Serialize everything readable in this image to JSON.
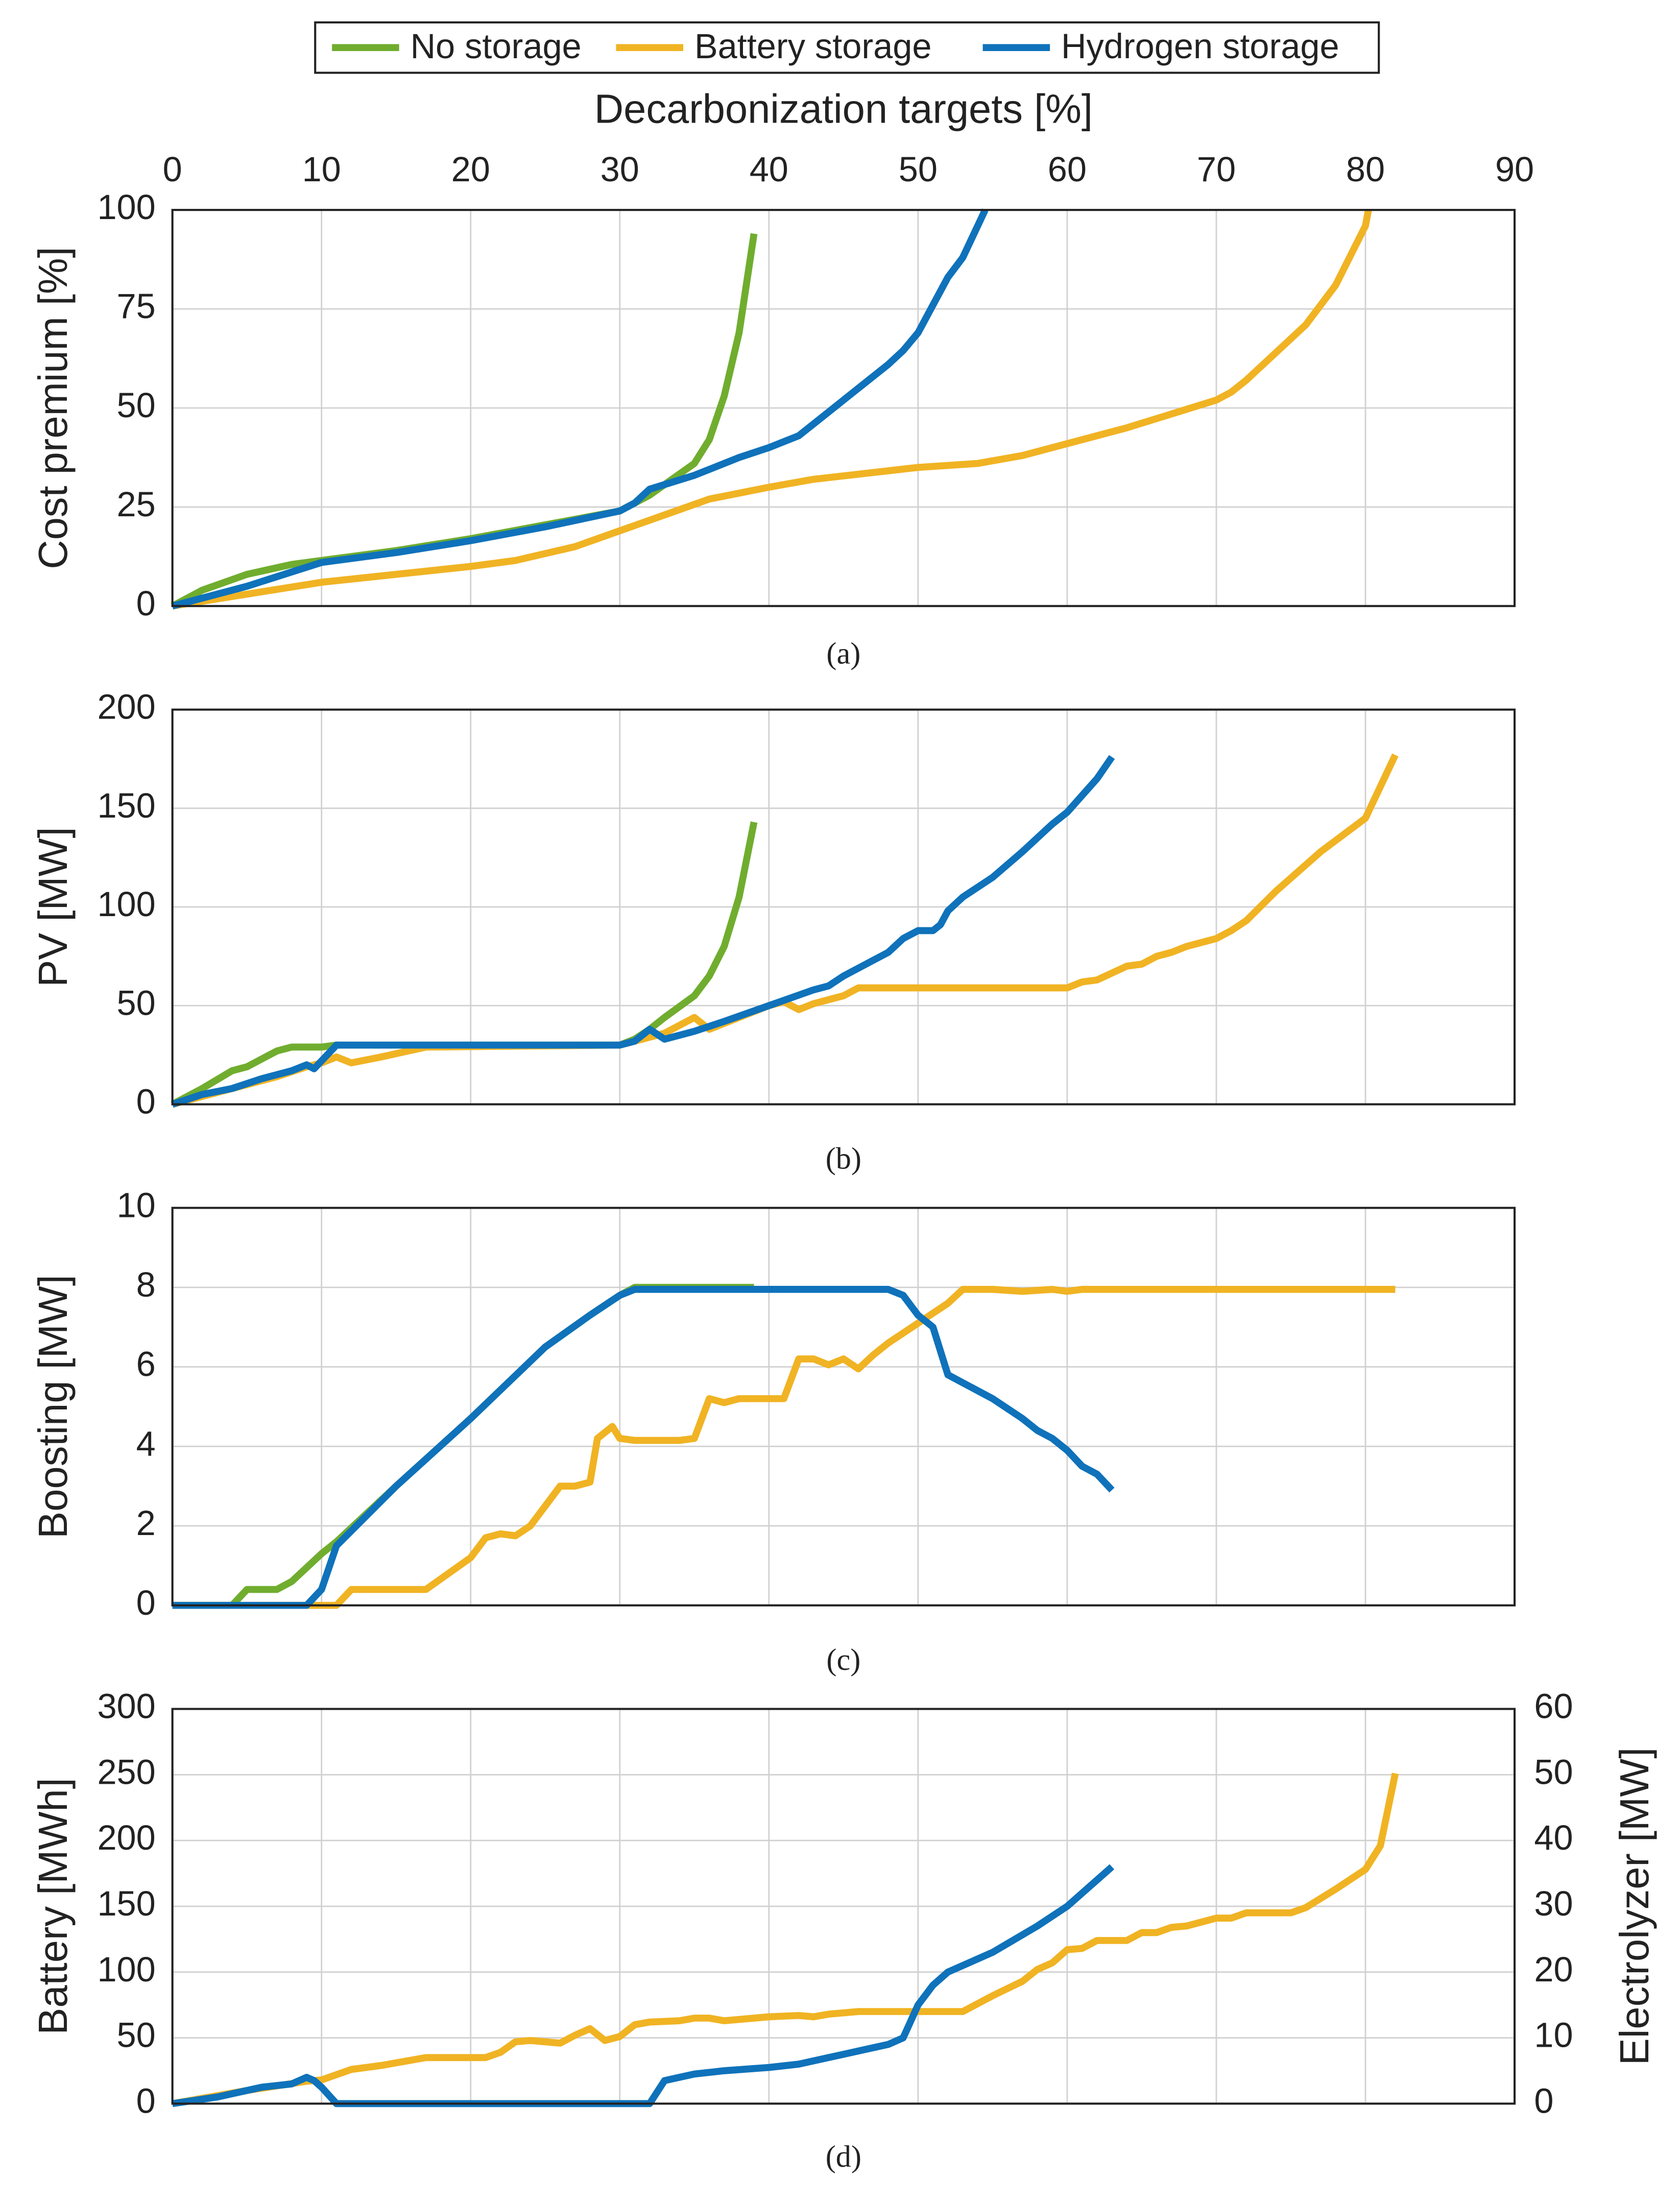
{
  "chart_data": [
    {
      "type": "line",
      "caption": "(a)",
      "xlabel": "Decarbonization targets [%]",
      "ylabel": "Cost premium [%]",
      "xlim": [
        0,
        90
      ],
      "xticks": [
        0,
        10,
        20,
        30,
        40,
        50,
        60,
        70,
        80,
        90
      ],
      "ylim": [
        0,
        100
      ],
      "yticks": [
        0,
        25,
        50,
        75,
        100
      ],
      "grid": true,
      "legend": "top",
      "series": [
        {
          "name": "No storage",
          "color": "#70ad2f",
          "x": [
            0,
            2,
            5,
            8,
            10,
            12,
            15,
            20,
            25,
            30,
            32,
            35,
            36,
            37,
            38,
            39
          ],
          "values": [
            0,
            4,
            8,
            10.5,
            11.5,
            12.5,
            14,
            17,
            20.5,
            24,
            28,
            36,
            42,
            53,
            69,
            94
          ]
        },
        {
          "name": "Battery storage",
          "color": "#f0b323",
          "x": [
            0,
            5,
            10,
            15,
            20,
            23,
            27,
            30,
            33,
            36,
            40,
            43,
            50,
            54,
            57,
            60,
            64,
            67,
            70,
            71,
            72,
            74,
            76,
            78,
            80,
            80.2
          ],
          "values": [
            0,
            3,
            6,
            8,
            10,
            11.5,
            15,
            19,
            23,
            27,
            30,
            32,
            35,
            36,
            38,
            41,
            45,
            48.5,
            52,
            54,
            57,
            64,
            71,
            81,
            96,
            100
          ]
        },
        {
          "name": "Hydrogen storage",
          "color": "#0f72ba",
          "x": [
            0,
            5,
            10,
            15,
            20,
            25,
            30,
            31,
            32,
            35,
            38,
            40,
            42,
            43,
            45,
            48,
            49,
            50,
            51,
            52,
            53,
            54,
            54.5
          ],
          "values": [
            0,
            5,
            11,
            13.5,
            16.5,
            20,
            24,
            26,
            29.5,
            33,
            37.5,
            40,
            43,
            46,
            52,
            61,
            64.5,
            69,
            76,
            83,
            88,
            96,
            100
          ]
        }
      ]
    },
    {
      "type": "line",
      "caption": "(b)",
      "ylabel": "PV [MW]",
      "xlim": [
        0,
        90
      ],
      "xticks": [
        0,
        10,
        20,
        30,
        40,
        50,
        60,
        70,
        80,
        90
      ],
      "ylim": [
        0,
        200
      ],
      "yticks": [
        0,
        50,
        100,
        150,
        200
      ],
      "grid": true,
      "series": [
        {
          "color": "#70ad2f",
          "x": [
            0,
            2,
            4,
            5,
            6,
            7,
            8,
            10,
            11,
            30,
            31,
            32,
            33,
            35,
            36,
            37,
            38,
            39
          ],
          "values": [
            0,
            8,
            17,
            19,
            23,
            27,
            29,
            29,
            30,
            30,
            33,
            38,
            44,
            55,
            65,
            80,
            105,
            143
          ]
        },
        {
          "color": "#f0b323",
          "x": [
            0,
            4,
            7,
            9,
            10,
            11,
            12,
            14,
            17,
            30,
            31,
            33,
            35,
            36,
            38,
            40,
            41,
            42,
            43,
            45,
            46,
            50,
            60,
            61,
            62,
            64,
            65,
            66,
            67,
            68,
            69,
            70,
            71,
            72,
            74,
            77,
            80,
            82
          ],
          "values": [
            0,
            8,
            14,
            19,
            21,
            24,
            21,
            24,
            29,
            30,
            32,
            36,
            44,
            38,
            44,
            50,
            52,
            48,
            51,
            55,
            59,
            59,
            59,
            62,
            63,
            70,
            71,
            75,
            77,
            80,
            82,
            84,
            88,
            93,
            108,
            128,
            145,
            177
          ]
        },
        {
          "color": "#0f72ba",
          "x": [
            0,
            2,
            4,
            6,
            8,
            9,
            9.5,
            11,
            30,
            31,
            32,
            33,
            35,
            37,
            40,
            43,
            44,
            45,
            47,
            48,
            49,
            50,
            51,
            51.5,
            52,
            53,
            55,
            57,
            59,
            60,
            62,
            63
          ],
          "values": [
            0,
            5,
            8,
            13,
            17,
            20,
            18,
            30,
            30,
            32,
            38,
            33,
            37,
            42,
            50,
            58,
            60,
            65,
            73,
            77,
            84,
            88,
            88,
            91,
            98,
            105,
            115,
            128,
            142,
            148,
            165,
            176
          ]
        }
      ]
    },
    {
      "type": "line",
      "caption": "(c)",
      "ylabel": "Boosting [MW]",
      "xlim": [
        0,
        90
      ],
      "xticks": [
        0,
        10,
        20,
        30,
        40,
        50,
        60,
        70,
        80,
        90
      ],
      "ylim": [
        0,
        10
      ],
      "yticks": [
        0,
        2,
        4,
        6,
        8,
        10
      ],
      "grid": true,
      "series": [
        {
          "color": "#70ad2f",
          "x": [
            0,
            4,
            5,
            6,
            7,
            8,
            10,
            11,
            15,
            20,
            25,
            28,
            30,
            31,
            35,
            39
          ],
          "values": [
            0,
            0,
            0.4,
            0.4,
            0.4,
            0.6,
            1.3,
            1.6,
            3.0,
            4.7,
            6.5,
            7.3,
            7.8,
            8,
            8,
            8
          ]
        },
        {
          "color": "#f0b323",
          "x": [
            0,
            11,
            12,
            17,
            20,
            21,
            22,
            23,
            24,
            25,
            26,
            27,
            28,
            28.5,
            29.5,
            30,
            31,
            34,
            35,
            36,
            37,
            38,
            41,
            42,
            43,
            44,
            45,
            46,
            47,
            48,
            50,
            52,
            53,
            55,
            57,
            59,
            60,
            61,
            82
          ],
          "values": [
            0,
            0,
            0.4,
            0.4,
            1.2,
            1.7,
            1.8,
            1.75,
            2.0,
            2.5,
            3.0,
            3.0,
            3.1,
            4.2,
            4.5,
            4.2,
            4.15,
            4.15,
            4.2,
            5.2,
            5.1,
            5.2,
            5.2,
            6.2,
            6.2,
            6.05,
            6.2,
            5.95,
            6.3,
            6.6,
            7.1,
            7.6,
            7.95,
            7.95,
            7.9,
            7.95,
            7.9,
            7.95,
            7.95
          ]
        },
        {
          "color": "#0f72ba",
          "x": [
            0,
            9,
            10,
            11,
            15,
            20,
            25,
            28,
            30,
            31,
            38,
            41,
            48,
            49,
            50,
            51,
            52,
            53,
            55,
            57,
            58,
            59,
            60,
            61,
            62,
            63
          ],
          "values": [
            0,
            0,
            0.4,
            1.5,
            3.0,
            4.7,
            6.5,
            7.3,
            7.8,
            7.95,
            7.95,
            7.95,
            7.95,
            7.8,
            7.3,
            7.0,
            5.8,
            5.6,
            5.2,
            4.7,
            4.4,
            4.2,
            3.9,
            3.5,
            3.3,
            2.9
          ]
        }
      ]
    },
    {
      "type": "line",
      "caption": "(d)",
      "ylabel": "Battery [MWh]",
      "y2label": "Electrolyzer [MW]",
      "xlim": [
        0,
        90
      ],
      "xticks": [
        0,
        10,
        20,
        30,
        40,
        50,
        60,
        70,
        80,
        90
      ],
      "ylim": [
        0,
        300
      ],
      "yticks": [
        0,
        50,
        100,
        150,
        200,
        250,
        300
      ],
      "y2lim": [
        0,
        60
      ],
      "y2ticks": [
        0,
        10,
        20,
        30,
        40,
        50,
        60
      ],
      "grid": true,
      "series": [
        {
          "color": "#f0b323",
          "x": [
            0,
            5,
            9,
            10,
            11,
            12,
            14,
            17,
            21,
            22,
            23,
            24,
            26,
            27,
            28,
            29,
            30,
            31,
            32,
            34,
            35,
            36,
            37,
            38,
            40,
            42,
            43,
            44,
            46,
            53,
            54,
            55,
            57,
            58,
            59,
            60,
            61,
            62,
            64,
            65,
            66,
            67,
            68,
            70,
            71,
            72,
            75,
            76,
            78,
            80,
            81,
            82
          ],
          "values": [
            0,
            10,
            17,
            18,
            22,
            26,
            29,
            35,
            35,
            39,
            47,
            48,
            46,
            52,
            57,
            48,
            51,
            60,
            62,
            63,
            65,
            65,
            63,
            64,
            66,
            67,
            66,
            68,
            70,
            70,
            76,
            82,
            93,
            102,
            107,
            117,
            118,
            124,
            124,
            130,
            130,
            134,
            135,
            141,
            141,
            145,
            145,
            149,
            163,
            178,
            196,
            251
          ]
        },
        {
          "color": "#0f72ba",
          "axis": "y2",
          "x": [
            0,
            3,
            4,
            6,
            8,
            9,
            9.5,
            10,
            11,
            32,
            33,
            35,
            37,
            40,
            42,
            44,
            46,
            48,
            49,
            50,
            51,
            52,
            55,
            58,
            60,
            63
          ],
          "values": [
            0,
            1,
            1.5,
            2.5,
            3,
            4,
            3.5,
            2.5,
            0,
            0,
            3.5,
            4.5,
            5,
            5.5,
            6,
            7,
            8,
            9,
            10,
            15,
            18,
            20,
            23,
            27,
            30,
            36
          ]
        }
      ]
    }
  ]
}
